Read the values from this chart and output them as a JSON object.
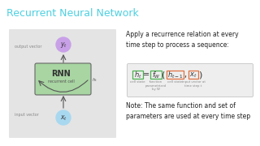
{
  "title": "Recurrent Neural Network",
  "title_color": "#4dd0e1",
  "title_fontsize": 9,
  "bg_color": "#ffffff",
  "diagram_bg": "#e4e4e4",
  "rnn_box_color": "#a8d5a2",
  "rnn_box_edge": "#666666",
  "output_circle_color": "#c8a0e8",
  "input_circle_color": "#a8d8f0",
  "arrow_color": "#555555",
  "text_dark": "#222222",
  "ht_edge_color": "#4caf50",
  "fw_edge_color": "#4caf50",
  "ht1_edge_color": "#e07040",
  "xt_edge_color": "#e07040",
  "apply_text": "Apply a recurrence relation at every\ntime step to process a sequence:",
  "note_text": "Note: The same function and set of\nparameters are used at every time step"
}
